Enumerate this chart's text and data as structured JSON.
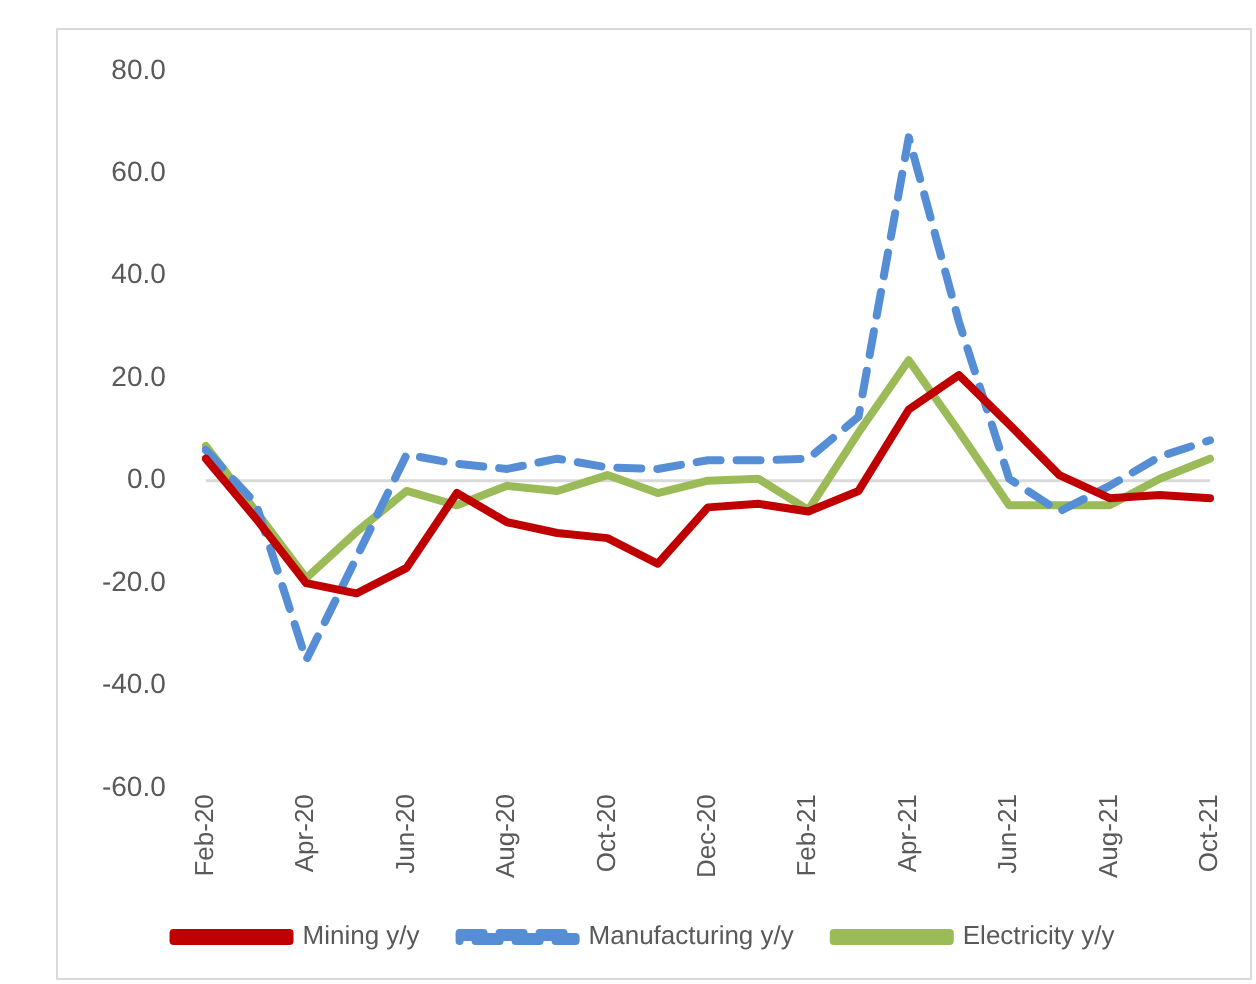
{
  "chart_data": {
    "type": "line",
    "categories": [
      "Feb-20",
      null,
      "Apr-20",
      null,
      "Jun-20",
      null,
      "Aug-20",
      null,
      "Oct-20",
      null,
      "Dec-20",
      null,
      "Feb-21",
      null,
      "Apr-21",
      null,
      "Jun-21",
      null,
      "Aug-21",
      null,
      "Oct-21"
    ],
    "series": [
      {
        "name": "Mining y/y",
        "color": "#c00000",
        "line_style": "solid",
        "values": [
          4.3,
          -7.4,
          -20,
          -22,
          -17,
          -2.4,
          -8.1,
          -10.2,
          -11.2,
          -16.2,
          -5.2,
          -4.5,
          -6.0,
          -2.0,
          13.9,
          20.6,
          11,
          1.1,
          -3.4,
          -2.8,
          -3.4
        ]
      },
      {
        "name": "Manufacturing y/y",
        "color": "#558ed5",
        "line_style": "dashed",
        "values": [
          6,
          -4.5,
          -35,
          -15,
          5.1,
          3.3,
          2.3,
          4.3,
          2.6,
          2.3,
          4.0,
          4.0,
          4.3,
          12.5,
          67,
          31,
          0.4,
          -6,
          -1,
          4.7,
          7.9
        ]
      },
      {
        "name": "Electricity y/y",
        "color": "#9bbb59",
        "line_style": "solid",
        "values": [
          6.8,
          -6,
          -19,
          -10,
          -2,
          -4.8,
          -1,
          -2,
          1.1,
          -2.4,
          0,
          0.4,
          -5.7,
          9.4,
          23.5,
          9.6,
          -4.8,
          -4.8,
          -4.8,
          0.4,
          4.3
        ]
      }
    ],
    "ylim": [
      -60,
      80
    ],
    "yticks": [
      {
        "value": -60,
        "label": "-60.0"
      },
      {
        "value": -40,
        "label": "-40.0"
      },
      {
        "value": -20,
        "label": "-20.0"
      },
      {
        "value": 0,
        "label": "0.0"
      },
      {
        "value": 20,
        "label": "20.0"
      },
      {
        "value": 40,
        "label": "40.0"
      },
      {
        "value": 60,
        "label": "60.0"
      },
      {
        "value": 80,
        "label": "80.0"
      }
    ],
    "ref_lines": [
      {
        "axis": "y",
        "value": 0,
        "color": "#d9d9d9"
      }
    ],
    "grid": false,
    "legend": "bottom",
    "marker": "none"
  }
}
